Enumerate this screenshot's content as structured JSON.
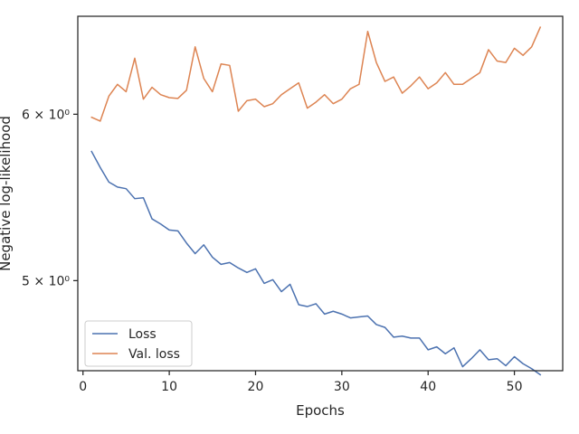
{
  "chart_data": {
    "type": "line",
    "title": "",
    "xlabel": "Epochs",
    "ylabel": "Negative log-likelihood",
    "xlim": [
      -0.6,
      55.6
    ],
    "ylim": [
      4.53,
      6.68
    ],
    "yscale": "log",
    "grid": false,
    "legend": "lower-left",
    "x_ticks": [
      0,
      10,
      20,
      30,
      40,
      50
    ],
    "x_tick_labels": [
      "0",
      "10",
      "20",
      "30",
      "40",
      "50"
    ],
    "y_ticks": [
      5,
      6
    ],
    "y_tick_labels": [
      "5 × 10⁰",
      "6 × 10⁰"
    ],
    "x": [
      1,
      2,
      3,
      4,
      5,
      6,
      7,
      8,
      9,
      10,
      11,
      12,
      13,
      14,
      15,
      16,
      17,
      18,
      19,
      20,
      21,
      22,
      23,
      24,
      25,
      26,
      27,
      28,
      29,
      30,
      31,
      32,
      33,
      34,
      35,
      36,
      37,
      38,
      39,
      40,
      41,
      42,
      43,
      44,
      45,
      46,
      47,
      48,
      49,
      50,
      51,
      52,
      53
    ],
    "series": [
      {
        "name": "Loss",
        "color": "#4c72b0",
        "values": [
          5.76,
          5.66,
          5.57,
          5.54,
          5.53,
          5.47,
          5.475,
          5.35,
          5.32,
          5.285,
          5.28,
          5.21,
          5.15,
          5.2,
          5.13,
          5.09,
          5.1,
          5.07,
          5.045,
          5.065,
          4.985,
          5.005,
          4.94,
          4.98,
          4.87,
          4.86,
          4.875,
          4.82,
          4.835,
          4.82,
          4.8,
          4.805,
          4.81,
          4.765,
          4.75,
          4.7,
          4.705,
          4.695,
          4.695,
          4.635,
          4.65,
          4.615,
          4.645,
          4.55,
          4.59,
          4.635,
          4.585,
          4.59,
          4.555,
          4.6,
          4.565,
          4.54,
          4.51
        ]
      },
      {
        "name": "Val. loss",
        "color": "#dd8452",
        "values": [
          5.98,
          5.955,
          6.12,
          6.2,
          6.15,
          6.38,
          6.1,
          6.18,
          6.13,
          6.11,
          6.105,
          6.16,
          6.46,
          6.24,
          6.15,
          6.34,
          6.33,
          6.02,
          6.09,
          6.1,
          6.05,
          6.07,
          6.13,
          6.17,
          6.21,
          6.04,
          6.08,
          6.13,
          6.07,
          6.1,
          6.17,
          6.2,
          6.57,
          6.35,
          6.22,
          6.25,
          6.14,
          6.19,
          6.25,
          6.17,
          6.21,
          6.28,
          6.2,
          6.2,
          6.24,
          6.28,
          6.44,
          6.36,
          6.35,
          6.45,
          6.4,
          6.46,
          6.6
        ]
      }
    ]
  }
}
